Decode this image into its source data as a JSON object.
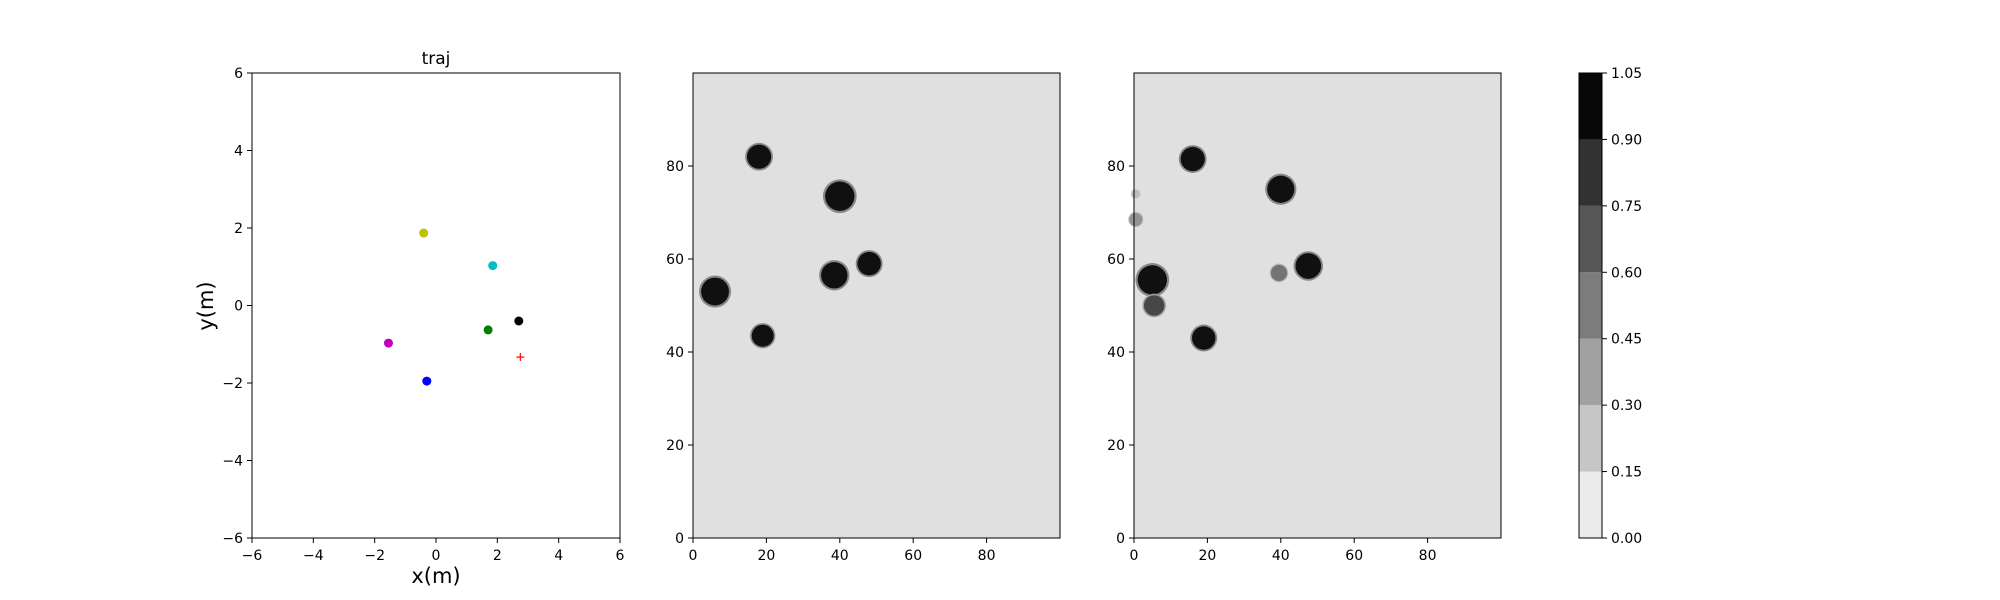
{
  "chart_data": [
    {
      "type": "scatter",
      "title": "traj",
      "xlabel": "x(m)",
      "ylabel": "y(m)",
      "xlim": [
        -6,
        6
      ],
      "ylim": [
        -6,
        6
      ],
      "xticks": [
        "−6",
        "−4",
        "−2",
        "0",
        "2",
        "4",
        "6"
      ],
      "yticks": [
        "−6",
        "−4",
        "−2",
        "0",
        "2",
        "4",
        "6"
      ],
      "grid": false,
      "points": [
        {
          "x": -0.4,
          "y": 1.87,
          "color": "#bfbf00",
          "marker": "dot"
        },
        {
          "x": 1.85,
          "y": 1.03,
          "color": "#00bfbf",
          "marker": "dot"
        },
        {
          "x": 2.7,
          "y": -0.4,
          "color": "#000000",
          "marker": "dot"
        },
        {
          "x": 1.7,
          "y": -0.63,
          "color": "#008000",
          "marker": "dot"
        },
        {
          "x": -1.55,
          "y": -0.97,
          "color": "#bf00bf",
          "marker": "dot"
        },
        {
          "x": -0.3,
          "y": -1.95,
          "color": "#0000ff",
          "marker": "dot"
        },
        {
          "x": 2.75,
          "y": -1.33,
          "color": "#ff0000",
          "marker": "plus"
        }
      ]
    },
    {
      "type": "heatmap",
      "title": "",
      "xlim": [
        0,
        100
      ],
      "ylim": [
        0,
        100
      ],
      "xticks": [
        "0",
        "20",
        "40",
        "60",
        "80"
      ],
      "yticks": [
        "0",
        "20",
        "40",
        "60",
        "80"
      ],
      "background_value": 0.05,
      "blobs": [
        {
          "x": 18,
          "y": 82,
          "r": 3.3,
          "value": 1.0
        },
        {
          "x": 40,
          "y": 73.5,
          "r": 4.0,
          "value": 1.0
        },
        {
          "x": 6,
          "y": 53,
          "r": 3.8,
          "value": 1.0
        },
        {
          "x": 38.5,
          "y": 56.5,
          "r": 3.6,
          "value": 1.0
        },
        {
          "x": 48,
          "y": 59,
          "r": 3.2,
          "value": 1.0
        },
        {
          "x": 19,
          "y": 43.5,
          "r": 3.0,
          "value": 1.0
        }
      ]
    },
    {
      "type": "heatmap",
      "title": "",
      "xlim": [
        0,
        100
      ],
      "ylim": [
        0,
        100
      ],
      "xticks": [
        "0",
        "20",
        "40",
        "60",
        "80"
      ],
      "yticks": [
        "0",
        "20",
        "40",
        "60",
        "80"
      ],
      "background_value": 0.05,
      "blobs": [
        {
          "x": 16,
          "y": 81.5,
          "r": 3.3,
          "value": 1.0
        },
        {
          "x": 40,
          "y": 75,
          "r": 3.7,
          "value": 1.0
        },
        {
          "x": 5,
          "y": 55.5,
          "r": 4.0,
          "value": 1.0
        },
        {
          "x": 5.5,
          "y": 50,
          "r": 2.8,
          "value": 0.75
        },
        {
          "x": 47.5,
          "y": 58.5,
          "r": 3.5,
          "value": 1.0
        },
        {
          "x": 19,
          "y": 43,
          "r": 3.2,
          "value": 1.0
        },
        {
          "x": 39.5,
          "y": 57,
          "r": 2.2,
          "value": 0.55
        },
        {
          "x": 0.5,
          "y": 68.5,
          "r": 1.8,
          "value": 0.4
        },
        {
          "x": 0.5,
          "y": 74,
          "r": 1.2,
          "value": 0.2
        }
      ]
    },
    {
      "type": "colorbar",
      "levels": [
        0.0,
        0.15,
        0.3,
        0.45,
        0.6,
        0.75,
        0.9,
        1.05
      ],
      "tick_labels": [
        "0.00",
        "0.15",
        "0.30",
        "0.45",
        "0.60",
        "0.75",
        "0.90",
        "1.05"
      ],
      "colors": [
        "#ebebeb",
        "#c6c6c6",
        "#a1a1a1",
        "#7c7c7c",
        "#575757",
        "#323232",
        "#080808"
      ]
    }
  ]
}
